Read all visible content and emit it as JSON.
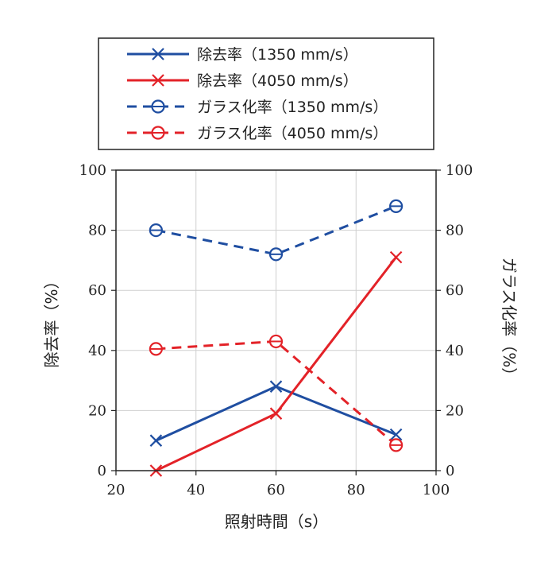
{
  "chart_data": {
    "type": "line",
    "xlabel": "照射時間（s）",
    "ylabel_left": "除去率（%）",
    "ylabel_right": "ガラス化率（%）",
    "xlim": [
      20,
      100
    ],
    "ylim": [
      0,
      100
    ],
    "x_ticks": [
      "20",
      "40",
      "60",
      "80",
      "100"
    ],
    "y_ticks": [
      "0",
      "20",
      "40",
      "60",
      "80",
      "100"
    ],
    "grid": true,
    "legend_position": "top",
    "x": [
      30,
      60,
      90
    ],
    "series": [
      {
        "name": "除去率（1350 mm/s）",
        "values": [
          10,
          28,
          12
        ],
        "color": "#1f4ea1",
        "marker": "x",
        "dashed": false,
        "axis": "left"
      },
      {
        "name": "除去率（4050 mm/s）",
        "values": [
          0,
          19,
          71
        ],
        "color": "#e32228",
        "marker": "x",
        "dashed": false,
        "axis": "left"
      },
      {
        "name": "ガラス化率（1350 mm/s）",
        "values": [
          80,
          72,
          88
        ],
        "color": "#1f4ea1",
        "marker": "circle",
        "dashed": true,
        "axis": "right"
      },
      {
        "name": "ガラス化率（4050 mm/s）",
        "values": [
          40.5,
          43,
          8.5
        ],
        "color": "#e32228",
        "marker": "circle",
        "dashed": true,
        "axis": "right"
      }
    ]
  }
}
